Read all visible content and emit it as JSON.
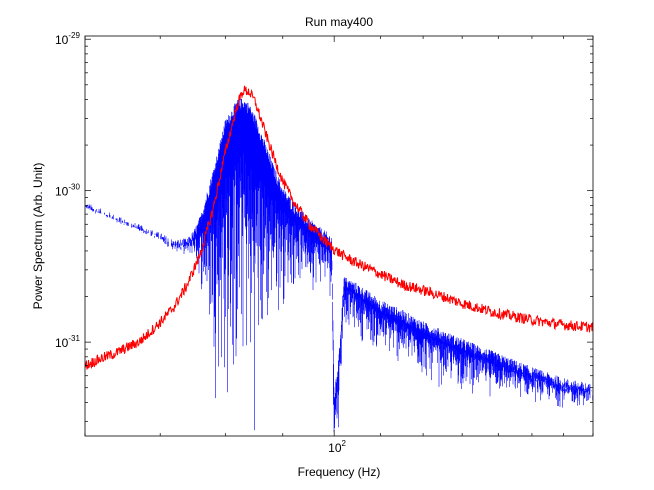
{
  "chart_data": {
    "type": "line",
    "title": "Run may400",
    "xlabel": "Frequency (Hz)",
    "ylabel": "Power Spectrum (Arb. Unit)",
    "x_scale": "log",
    "y_scale": "log",
    "xlim": [
      60,
      170
    ],
    "ylim": [
      2.4e-32,
      1.05e-29
    ],
    "grid": false,
    "x_ticks": [
      {
        "value": 100,
        "base": "10",
        "exp": "2"
      }
    ],
    "y_ticks": [
      {
        "value": 1e-29,
        "base": "10",
        "exp": "-29"
      },
      {
        "value": 1e-30,
        "base": "10",
        "exp": "-30"
      },
      {
        "value": 1e-31,
        "base": "10",
        "exp": "-31"
      }
    ],
    "series": [
      {
        "color": "#0000ff",
        "x": [
          60,
          65,
          70,
          72,
          74,
          75,
          76,
          78,
          80,
          82,
          83,
          84,
          85,
          86,
          88,
          90,
          92,
          95,
          98,
          99.5,
          100,
          101,
          102,
          105,
          110,
          115,
          120,
          130,
          140,
          150,
          160,
          170
        ],
        "y": [
          8e-31,
          6.2e-31,
          5e-31,
          4.5e-31,
          4.6e-31,
          5.2e-31,
          6.5e-31,
          1.3e-30,
          2.8e-30,
          3.8e-30,
          3.9e-30,
          3.6e-30,
          3e-30,
          2.4e-30,
          1.5e-30,
          1e-30,
          8e-31,
          6.2e-31,
          5.2e-31,
          4.8e-31,
          4.3e-32,
          8e-32,
          2.6e-31,
          2.3e-31,
          1.8e-31,
          1.55e-31,
          1.3e-31,
          1e-31,
          8e-32,
          6.5e-32,
          5.5e-32,
          5e-32
        ],
        "low": [
          7.5e-31,
          5.8e-31,
          4.6e-31,
          3.9e-31,
          3.6e-31,
          3.4e-31,
          2e-31,
          4e-32,
          1.5e-32,
          1.5e-32,
          2.5e-32,
          1.5e-32,
          1.6e-32,
          2.8e-32,
          8e-32,
          1.4e-31,
          1.8e-31,
          2e-31,
          2e-31,
          1.5e-31,
          1.5e-32,
          2.5e-32,
          1.2e-31,
          1e-31,
          7e-32,
          6e-32,
          4.8e-32,
          4.2e-32,
          4e-32,
          3.8e-32,
          3.5e-32,
          3.6e-32
        ]
      },
      {
        "color": "#ff0000",
        "x": [
          60,
          62,
          64,
          65,
          66,
          67,
          68,
          70,
          72,
          74,
          76,
          78,
          80,
          82,
          83,
          84,
          85,
          86,
          88,
          90,
          92,
          95,
          98,
          100,
          102,
          105,
          108,
          110,
          115,
          120,
          125,
          130,
          140,
          150,
          160,
          170
        ],
        "y": [
          7e-32,
          7.8e-32,
          8.5e-32,
          9e-32,
          9.5e-32,
          1e-31,
          1.1e-31,
          1.35e-31,
          1.7e-31,
          2.4e-31,
          3.8e-31,
          7.5e-31,
          1.8e-30,
          3.7e-30,
          4.6e-30,
          4.5e-30,
          3.9e-30,
          3e-30,
          1.8e-30,
          1.15e-30,
          8.5e-31,
          6e-31,
          4.7e-31,
          4.1e-31,
          3.7e-31,
          3.3e-31,
          3e-31,
          2.8e-31,
          2.4e-31,
          2.2e-31,
          2e-31,
          1.8e-31,
          1.55e-31,
          1.4e-31,
          1.3e-31,
          1.25e-31
        ]
      }
    ]
  }
}
